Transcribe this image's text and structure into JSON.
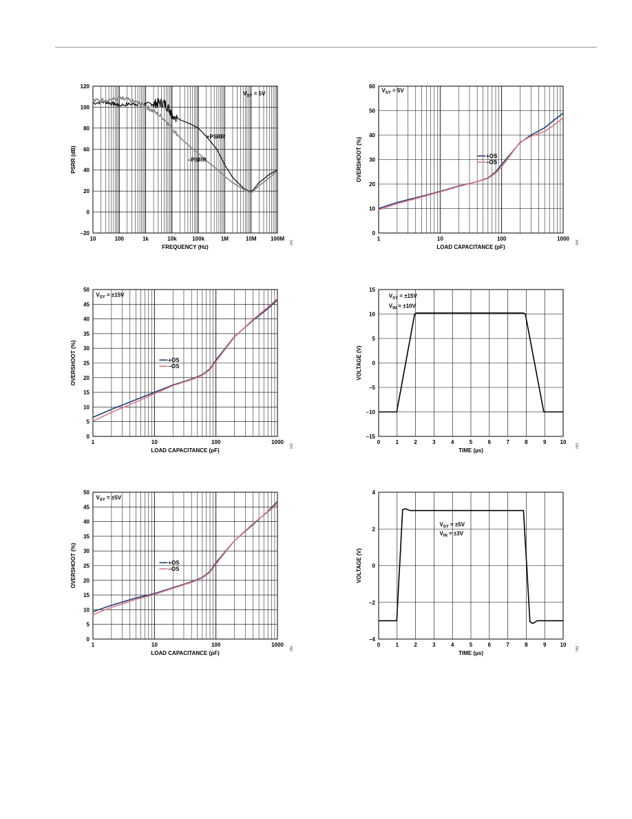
{
  "chart_data": [
    {
      "id": "psrr",
      "type": "line",
      "x_scale": "log",
      "xlabel": "FREQUENCY (Hz)",
      "ylabel": "PSRR (dB)",
      "xlim": [
        10,
        100000000
      ],
      "ylim": [
        -20,
        120
      ],
      "x_ticks": [
        {
          "v": 10,
          "l": "10"
        },
        {
          "v": 100,
          "l": "100"
        },
        {
          "v": 1000,
          "l": "1k"
        },
        {
          "v": 10000,
          "l": "10k"
        },
        {
          "v": 100000,
          "l": "100k"
        },
        {
          "v": 1000000,
          "l": "1M"
        },
        {
          "v": 10000000,
          "l": "10M"
        },
        {
          "v": 100000000,
          "l": "100M"
        }
      ],
      "y_ticks": [
        {
          "v": -20,
          "l": "–20"
        },
        {
          "v": 0,
          "l": "0"
        },
        {
          "v": 20,
          "l": "20"
        },
        {
          "v": 40,
          "l": "40"
        },
        {
          "v": 60,
          "l": "60"
        },
        {
          "v": 80,
          "l": "80"
        },
        {
          "v": 100,
          "l": "100"
        },
        {
          "v": 120,
          "l": "120"
        }
      ],
      "annotations": [
        {
          "main": "V",
          "sub": "SY",
          "rest": " = 5V",
          "x": 5000000,
          "y": 111
        },
        {
          "main": "+PSRR",
          "x": 200000,
          "y": 70
        },
        {
          "main": "–PSRR",
          "x": 40000,
          "y": 48
        }
      ],
      "fig_id": "041",
      "series": [
        {
          "name": "+PSRR",
          "color": "#111111",
          "width": 1.3,
          "x": [
            10,
            30,
            60,
            100,
            300,
            600,
            1000,
            2000,
            3000,
            5000,
            8000,
            10000,
            20000,
            50000,
            100000,
            200000,
            500000,
            1000000,
            2000000,
            5000000,
            8000000,
            10000000,
            12000000,
            20000000,
            50000000,
            100000000
          ],
          "y": [
            104,
            105,
            103,
            102,
            103,
            103,
            103,
            103,
            104,
            104,
            98,
            93,
            88,
            84,
            80,
            72,
            60,
            45,
            33,
            23,
            20,
            20,
            21,
            28,
            36,
            40
          ]
        },
        {
          "name": "–PSRR",
          "color": "#8c8c8c",
          "width": 1.8,
          "x": [
            10,
            30,
            100,
            200,
            500,
            1000,
            2000,
            5000,
            10000,
            20000,
            50000,
            100000,
            200000,
            500000,
            1000000,
            2000000,
            5000000,
            10000000,
            20000000,
            50000000,
            100000000
          ],
          "y": [
            106,
            107,
            108,
            107,
            104,
            101,
            96,
            89,
            80,
            71,
            62,
            56,
            49,
            41,
            34,
            28,
            22,
            18,
            25,
            33,
            39
          ]
        }
      ]
    },
    {
      "id": "overshoot-5v",
      "type": "line",
      "x_scale": "log",
      "xlabel": "LOAD CAPACITANCE (pF)",
      "ylabel": "OVERSHOOT (%)",
      "xlim": [
        1,
        1000
      ],
      "ylim": [
        0,
        60
      ],
      "x_ticks": [
        {
          "v": 1,
          "l": "1"
        },
        {
          "v": 10,
          "l": "10"
        },
        {
          "v": 100,
          "l": "100"
        },
        {
          "v": 1000,
          "l": "1000"
        }
      ],
      "y_ticks": [
        {
          "v": 0,
          "l": "0"
        },
        {
          "v": 10,
          "l": "10"
        },
        {
          "v": 20,
          "l": "20"
        },
        {
          "v": 30,
          "l": "30"
        },
        {
          "v": 40,
          "l": "40"
        },
        {
          "v": 50,
          "l": "50"
        },
        {
          "v": 60,
          "l": "60"
        }
      ],
      "annotations": [
        {
          "main": "V",
          "sub": "SY",
          "rest": " = 5V",
          "x": 1.12,
          "y": 57.5
        }
      ],
      "legend": {
        "position": "center",
        "anchor_x": 40,
        "anchor_y": 31.5
      },
      "fig_id": "044",
      "series": [
        {
          "name": "+OS",
          "color": "#1d3f73",
          "width": 1.6,
          "x": [
            1,
            2,
            5,
            10,
            20,
            40,
            60,
            80,
            100,
            200,
            300,
            500,
            700,
            1000
          ],
          "y": [
            10,
            12.5,
            15,
            17,
            19.2,
            21,
            22.5,
            25,
            28,
            37,
            40,
            43,
            46,
            49
          ]
        },
        {
          "name": "–OS",
          "color": "#e07585",
          "width": 1.6,
          "x": [
            1,
            2,
            5,
            10,
            20,
            40,
            60,
            80,
            100,
            200,
            300,
            500,
            700,
            1000
          ],
          "y": [
            9.5,
            12,
            14.7,
            16.8,
            19,
            21,
            22.3,
            24.5,
            27,
            37.2,
            39.5,
            41.5,
            44,
            47
          ]
        }
      ]
    },
    {
      "id": "overshoot-15v",
      "type": "line",
      "x_scale": "log",
      "xlabel": "LOAD CAPACITANCE (pF)",
      "ylabel": "OVERSHOOT (%)",
      "xlim": [
        1,
        1000
      ],
      "ylim": [
        0,
        50
      ],
      "x_ticks": [
        {
          "v": 1,
          "l": "1"
        },
        {
          "v": 10,
          "l": "10"
        },
        {
          "v": 100,
          "l": "100"
        },
        {
          "v": 1000,
          "l": "1000"
        }
      ],
      "y_ticks": [
        {
          "v": 0,
          "l": "0"
        },
        {
          "v": 5,
          "l": "5"
        },
        {
          "v": 10,
          "l": "10"
        },
        {
          "v": 15,
          "l": "15"
        },
        {
          "v": 20,
          "l": "20"
        },
        {
          "v": 25,
          "l": "25"
        },
        {
          "v": 30,
          "l": "30"
        },
        {
          "v": 35,
          "l": "35"
        },
        {
          "v": 40,
          "l": "40"
        },
        {
          "v": 45,
          "l": "45"
        },
        {
          "v": 50,
          "l": "50"
        }
      ],
      "annotations": [
        {
          "main": "V",
          "sub": "SY",
          "rest": " = ±15V",
          "x": 1.12,
          "y": 47.5
        }
      ],
      "legend": {
        "position": "center",
        "anchor_x": 12,
        "anchor_y": 26
      },
      "fig_id": "042",
      "series": [
        {
          "name": "+OS",
          "color": "#1d3f73",
          "width": 1.6,
          "x": [
            1,
            2,
            5,
            10,
            20,
            40,
            60,
            80,
            100,
            200,
            400,
            700,
            1000
          ],
          "y": [
            6.5,
            9.2,
            12.5,
            15,
            17.5,
            19.5,
            21,
            23,
            26,
            34,
            39.5,
            43.5,
            46.5
          ]
        },
        {
          "name": "–OS",
          "color": "#e07585",
          "width": 1.6,
          "x": [
            1,
            2,
            5,
            10,
            20,
            40,
            60,
            80,
            100,
            200,
            400,
            700,
            1000
          ],
          "y": [
            5.2,
            8.2,
            11.7,
            14.5,
            17.3,
            19.3,
            20.8,
            22.7,
            25.5,
            33.8,
            39.8,
            44,
            47
          ]
        }
      ]
    },
    {
      "id": "pulse-15v",
      "type": "line",
      "x_scale": "linear",
      "xlabel": "TIME (µs)",
      "ylabel": "VOLTAGE (V)",
      "xlim": [
        0,
        10
      ],
      "ylim": [
        -15,
        15
      ],
      "x_ticks": [
        {
          "v": 0,
          "l": "0"
        },
        {
          "v": 1,
          "l": "1"
        },
        {
          "v": 2,
          "l": "2"
        },
        {
          "v": 3,
          "l": "3"
        },
        {
          "v": 4,
          "l": "4"
        },
        {
          "v": 5,
          "l": "5"
        },
        {
          "v": 6,
          "l": "6"
        },
        {
          "v": 7,
          "l": "7"
        },
        {
          "v": 8,
          "l": "8"
        },
        {
          "v": 9,
          "l": "9"
        },
        {
          "v": 10,
          "l": "10"
        }
      ],
      "y_ticks": [
        {
          "v": -15,
          "l": "–15"
        },
        {
          "v": -10,
          "l": "–10"
        },
        {
          "v": -5,
          "l": "–5"
        },
        {
          "v": 0,
          "l": "0"
        },
        {
          "v": 5,
          "l": "5"
        },
        {
          "v": 10,
          "l": "10"
        },
        {
          "v": 15,
          "l": "15"
        }
      ],
      "annotations": [
        {
          "main": "V",
          "sub": "SY",
          "rest": " = ±15V",
          "x": 0.55,
          "y": 13.3
        },
        {
          "main": "V",
          "sub": "IN",
          "rest": " = ±10V",
          "x": 0.55,
          "y": 11.3
        }
      ],
      "fig_id": "043",
      "series": [
        {
          "name": "",
          "color": "#000000",
          "width": 1.6,
          "x": [
            0,
            0.98,
            1.95,
            2.05,
            7.85,
            7.95,
            8.95,
            9.05,
            10
          ],
          "y": [
            -10,
            -10,
            10,
            10.2,
            10.2,
            10,
            -10,
            -10,
            -10
          ]
        }
      ]
    },
    {
      "id": "overshoot-5v-dual",
      "type": "line",
      "x_scale": "log",
      "xlabel": "LOAD CAPACITANCE (pF)",
      "ylabel": "OVERSHOOT (%)",
      "xlim": [
        1,
        1000
      ],
      "ylim": [
        0,
        50
      ],
      "x_ticks": [
        {
          "v": 1,
          "l": "1"
        },
        {
          "v": 10,
          "l": "10"
        },
        {
          "v": 100,
          "l": "100"
        },
        {
          "v": 1000,
          "l": "1000"
        }
      ],
      "y_ticks": [
        {
          "v": 0,
          "l": "0"
        },
        {
          "v": 5,
          "l": "5"
        },
        {
          "v": 10,
          "l": "10"
        },
        {
          "v": 15,
          "l": "15"
        },
        {
          "v": 20,
          "l": "20"
        },
        {
          "v": 25,
          "l": "25"
        },
        {
          "v": 30,
          "l": "30"
        },
        {
          "v": 35,
          "l": "35"
        },
        {
          "v": 40,
          "l": "40"
        },
        {
          "v": 45,
          "l": "45"
        },
        {
          "v": 50,
          "l": "50"
        }
      ],
      "annotations": [
        {
          "main": "V",
          "sub": "SY",
          "rest": " = ±5V",
          "x": 1.12,
          "y": 47.5
        }
      ],
      "legend": {
        "position": "center",
        "anchor_x": 12,
        "anchor_y": 26
      },
      "fig_id": "050",
      "series": [
        {
          "name": "+OS",
          "color": "#1d3f73",
          "width": 1.6,
          "x": [
            1,
            2,
            5,
            10,
            20,
            40,
            60,
            80,
            100,
            200,
            400,
            700,
            1000
          ],
          "y": [
            9.3,
            11.5,
            14,
            15.5,
            17.5,
            19.5,
            21,
            23,
            26,
            33.5,
            39,
            43.5,
            46.8
          ]
        },
        {
          "name": "–OS",
          "color": "#e07585",
          "width": 1.6,
          "x": [
            1,
            2,
            5,
            10,
            20,
            40,
            60,
            80,
            100,
            200,
            400,
            700,
            1000
          ],
          "y": [
            8.3,
            10.8,
            13.5,
            15.2,
            17.3,
            19.3,
            20.8,
            22.7,
            25.5,
            33.5,
            39.3,
            43.3,
            46
          ]
        }
      ]
    },
    {
      "id": "pulse-5v",
      "type": "line",
      "x_scale": "linear",
      "xlabel": "TIME (µs)",
      "ylabel": "VOLTAGE (V)",
      "xlim": [
        0,
        10
      ],
      "ylim": [
        -4,
        4
      ],
      "x_ticks": [
        {
          "v": 0,
          "l": "0"
        },
        {
          "v": 1,
          "l": "1"
        },
        {
          "v": 2,
          "l": "2"
        },
        {
          "v": 3,
          "l": "3"
        },
        {
          "v": 4,
          "l": "4"
        },
        {
          "v": 5,
          "l": "5"
        },
        {
          "v": 6,
          "l": "6"
        },
        {
          "v": 7,
          "l": "7"
        },
        {
          "v": 8,
          "l": "8"
        },
        {
          "v": 9,
          "l": "9"
        },
        {
          "v": 10,
          "l": "10"
        }
      ],
      "y_ticks": [
        {
          "v": -4,
          "l": "–4"
        },
        {
          "v": -2,
          "l": "–2"
        },
        {
          "v": 0,
          "l": "0"
        },
        {
          "v": 2,
          "l": "2"
        },
        {
          "v": 4,
          "l": "4"
        }
      ],
      "annotations": [
        {
          "main": "V",
          "sub": "SY",
          "rest": " = ±5V",
          "x": 3.3,
          "y": 2.15
        },
        {
          "main": "V",
          "sub": "IN",
          "rest": " = ±3V",
          "x": 3.3,
          "y": 1.65
        }
      ],
      "fig_id": "046",
      "series": [
        {
          "name": "",
          "color": "#000000",
          "width": 1.6,
          "x": [
            0,
            0.98,
            1.3,
            1.45,
            1.7,
            7.85,
            8.2,
            8.35,
            8.6,
            10
          ],
          "y": [
            -3,
            -3,
            3.05,
            3.1,
            3.0,
            3.0,
            -3.05,
            -3.15,
            -3.0,
            -3.0
          ]
        }
      ]
    }
  ]
}
